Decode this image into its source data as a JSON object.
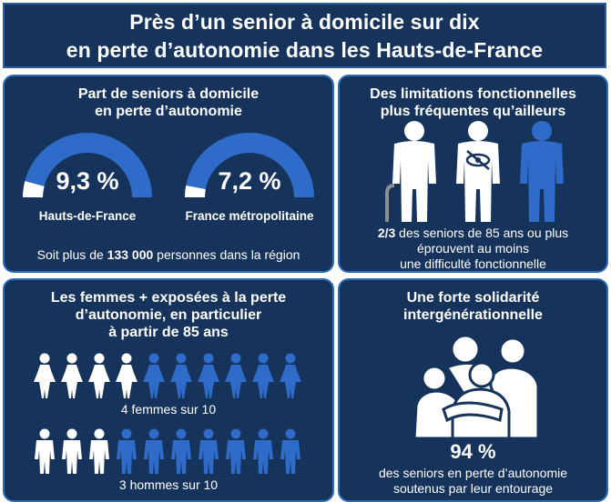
{
  "header": {
    "line1": "Près d’un senior à domicile sur dix",
    "line2": "en perte d’autonomie dans les Hauts-de-France"
  },
  "panel_share": {
    "title_line1": "Part de seniors à domicile",
    "title_line2": "en perte d’autonomie",
    "gauges": [
      {
        "value": "9,3 %",
        "label": "Hauts-de-France"
      },
      {
        "value": "7,2 %",
        "label": "France métropolitaine"
      }
    ],
    "footer_prefix": "Soit plus de ",
    "footer_number": "133 000",
    "footer_suffix": " personnes dans la région"
  },
  "panel_limits": {
    "title_line1": "Des limitations fonctionnelles",
    "title_line2": "plus fréquentes qu’ailleurs",
    "stat_bold": "2/3",
    "stat_line1": " des seniors de 85 ans ou plus",
    "stat_line2": "éprouvent au moins",
    "stat_line3": "une difficulté fonctionnelle"
  },
  "panel_gender": {
    "title_line1": "Les femmes + exposées à la perte",
    "title_line2": "d’autonomie, en particulier",
    "title_line3": "à partir de 85 ans",
    "women": {
      "caption": "4 femmes sur 10",
      "highlighted": 4,
      "total": 10
    },
    "men": {
      "caption": "3 hommes sur 10",
      "highlighted": 3,
      "total": 10
    }
  },
  "panel_solidarity": {
    "title_line1": "Une forte solidarité",
    "title_line2": "intergénérationnelle",
    "percent": "94 %",
    "caption_line1": "des seniors en perte d’autonomie",
    "caption_line2": "soutenus par leur entourage"
  },
  "colors": {
    "navy": "#16335b",
    "blue": "#2f6bc8",
    "white": "#ffffff"
  },
  "icons": [
    "gauge-icon",
    "senior-with-cane-icon",
    "senior-visual-impairment-icon",
    "senior-icon",
    "woman-icon",
    "man-icon",
    "family-hug-icon"
  ]
}
